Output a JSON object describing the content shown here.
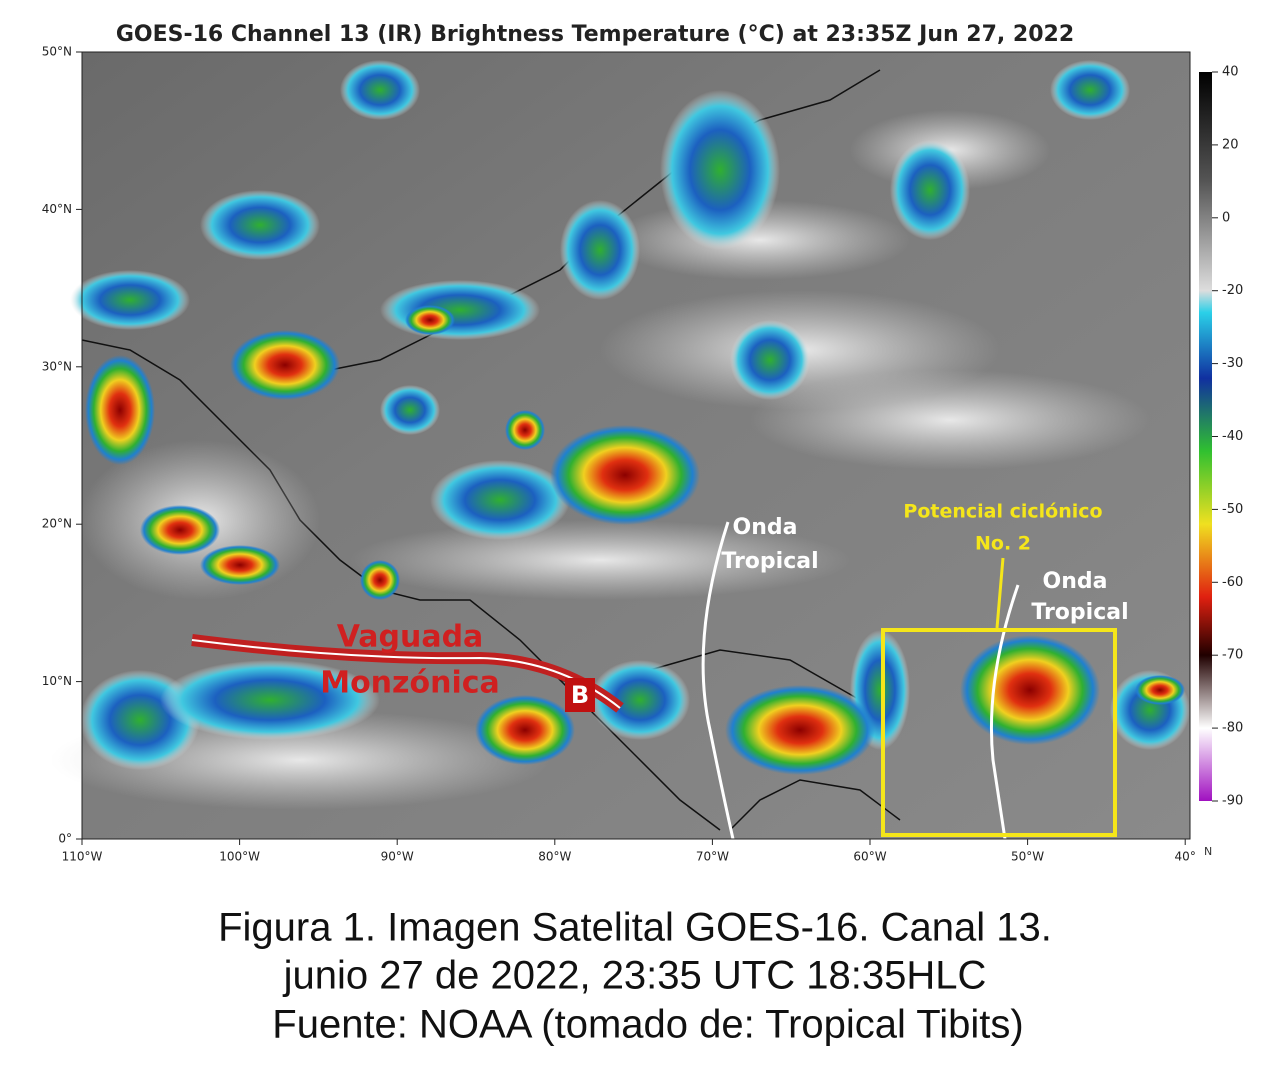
{
  "header": {
    "title": "GOES-16 Channel 13 (IR) Brightness Temperature (°C) at 23:35Z Jun 27, 2022"
  },
  "map": {
    "lat_labels": [
      "50°N",
      "40°N",
      "30°N",
      "20°N",
      "10°N",
      "0°"
    ],
    "lon_labels": [
      "110°W",
      "100°W",
      "90°W",
      "80°W",
      "70°W",
      "60°W",
      "50°W",
      "40°"
    ],
    "colorbar": {
      "ticks": [
        40,
        20,
        0,
        -20,
        -30,
        -40,
        -50,
        -60,
        -70,
        -80,
        -90
      ],
      "corner_label": "N"
    },
    "annotations": {
      "monsoon_trough": [
        "Vaguada",
        "Monzónica"
      ],
      "low": "B",
      "tropical_wave_1": [
        "Onda",
        "Tropical"
      ],
      "tropical_wave_2": [
        "Onda",
        "Tropical"
      ],
      "cyclonic_potential": [
        "Potencial ciclónico",
        "No. 2"
      ]
    }
  },
  "caption": [
    "Figura 1. Imagen Satelital GOES-16. Canal 13.",
    "junio 27 de 2022, 23:35 UTC 18:35HLC",
    "Fuente: NOAA (tomado de: Tropical Tibits)"
  ]
}
